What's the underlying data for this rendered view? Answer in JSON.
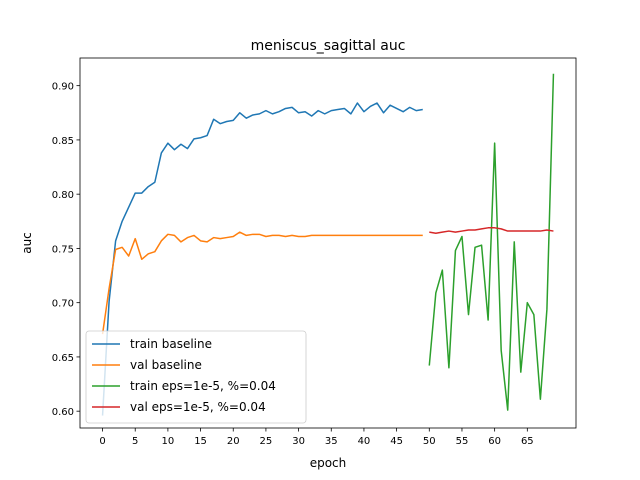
{
  "chart_data": {
    "type": "line",
    "title": "meniscus_sagittal auc",
    "xlabel": "epoch",
    "ylabel": "auc",
    "xlim": [
      -3.45,
      72.45
    ],
    "ylim": [
      0.5845,
      0.9255
    ],
    "xticks": [
      0,
      5,
      10,
      15,
      20,
      25,
      30,
      35,
      40,
      45,
      50,
      55,
      60,
      65
    ],
    "yticks": [
      0.6,
      0.65,
      0.7,
      0.75,
      0.8,
      0.85,
      0.9
    ],
    "grid": false,
    "legend_position": "lower-left",
    "series": [
      {
        "name": "train baseline",
        "color": "#1f77b4",
        "x": [
          0,
          1,
          2,
          3,
          4,
          5,
          6,
          7,
          8,
          9,
          10,
          11,
          12,
          13,
          14,
          15,
          16,
          17,
          18,
          19,
          20,
          21,
          22,
          23,
          24,
          25,
          26,
          27,
          28,
          29,
          30,
          31,
          32,
          33,
          34,
          35,
          36,
          37,
          38,
          39,
          40,
          41,
          42,
          43,
          44,
          45,
          46,
          47,
          48,
          49
        ],
        "y": [
          0.596,
          0.701,
          0.757,
          0.775,
          0.788,
          0.801,
          0.801,
          0.807,
          0.811,
          0.838,
          0.847,
          0.841,
          0.846,
          0.842,
          0.851,
          0.852,
          0.854,
          0.869,
          0.865,
          0.867,
          0.868,
          0.875,
          0.87,
          0.873,
          0.874,
          0.877,
          0.874,
          0.876,
          0.879,
          0.88,
          0.875,
          0.876,
          0.872,
          0.877,
          0.874,
          0.877,
          0.878,
          0.879,
          0.874,
          0.884,
          0.876,
          0.881,
          0.884,
          0.875,
          0.882,
          0.879,
          0.876,
          0.88,
          0.877,
          0.878
        ]
      },
      {
        "name": "val baseline",
        "color": "#ff7f0e",
        "x": [
          0,
          1,
          2,
          3,
          4,
          5,
          6,
          7,
          8,
          9,
          10,
          11,
          12,
          13,
          14,
          15,
          16,
          17,
          18,
          19,
          20,
          21,
          22,
          23,
          24,
          25,
          26,
          27,
          28,
          29,
          30,
          31,
          32,
          33,
          34,
          35,
          36,
          37,
          38,
          39,
          40,
          41,
          42,
          43,
          44,
          45,
          46,
          47,
          48,
          49
        ],
        "y": [
          0.671,
          0.713,
          0.749,
          0.751,
          0.743,
          0.759,
          0.74,
          0.745,
          0.747,
          0.757,
          0.763,
          0.762,
          0.756,
          0.76,
          0.762,
          0.757,
          0.756,
          0.76,
          0.759,
          0.76,
          0.761,
          0.765,
          0.762,
          0.763,
          0.763,
          0.761,
          0.762,
          0.762,
          0.761,
          0.762,
          0.761,
          0.761,
          0.762,
          0.762,
          0.762,
          0.762,
          0.762,
          0.762,
          0.762,
          0.762,
          0.762,
          0.762,
          0.762,
          0.762,
          0.762,
          0.762,
          0.762,
          0.762,
          0.762,
          0.762
        ]
      },
      {
        "name": "train eps=1e-5, %=0.04",
        "color": "#2ca02c",
        "x": [
          50,
          51,
          52,
          53,
          54,
          55,
          56,
          57,
          58,
          59,
          60,
          61,
          62,
          63,
          64,
          65,
          66,
          67,
          68,
          69
        ],
        "y": [
          0.642,
          0.709,
          0.73,
          0.64,
          0.748,
          0.761,
          0.689,
          0.751,
          0.753,
          0.684,
          0.847,
          0.656,
          0.601,
          0.756,
          0.636,
          0.7,
          0.689,
          0.611,
          0.694,
          0.911
        ]
      },
      {
        "name": "val eps=1e-5, %=0.04",
        "color": "#d62728",
        "x": [
          50,
          51,
          52,
          53,
          54,
          55,
          56,
          57,
          58,
          59,
          60,
          61,
          62,
          63,
          64,
          65,
          66,
          67,
          68,
          69
        ],
        "y": [
          0.765,
          0.764,
          0.765,
          0.766,
          0.765,
          0.766,
          0.767,
          0.767,
          0.768,
          0.769,
          0.769,
          0.768,
          0.766,
          0.766,
          0.766,
          0.766,
          0.766,
          0.766,
          0.767,
          0.766
        ]
      }
    ]
  }
}
